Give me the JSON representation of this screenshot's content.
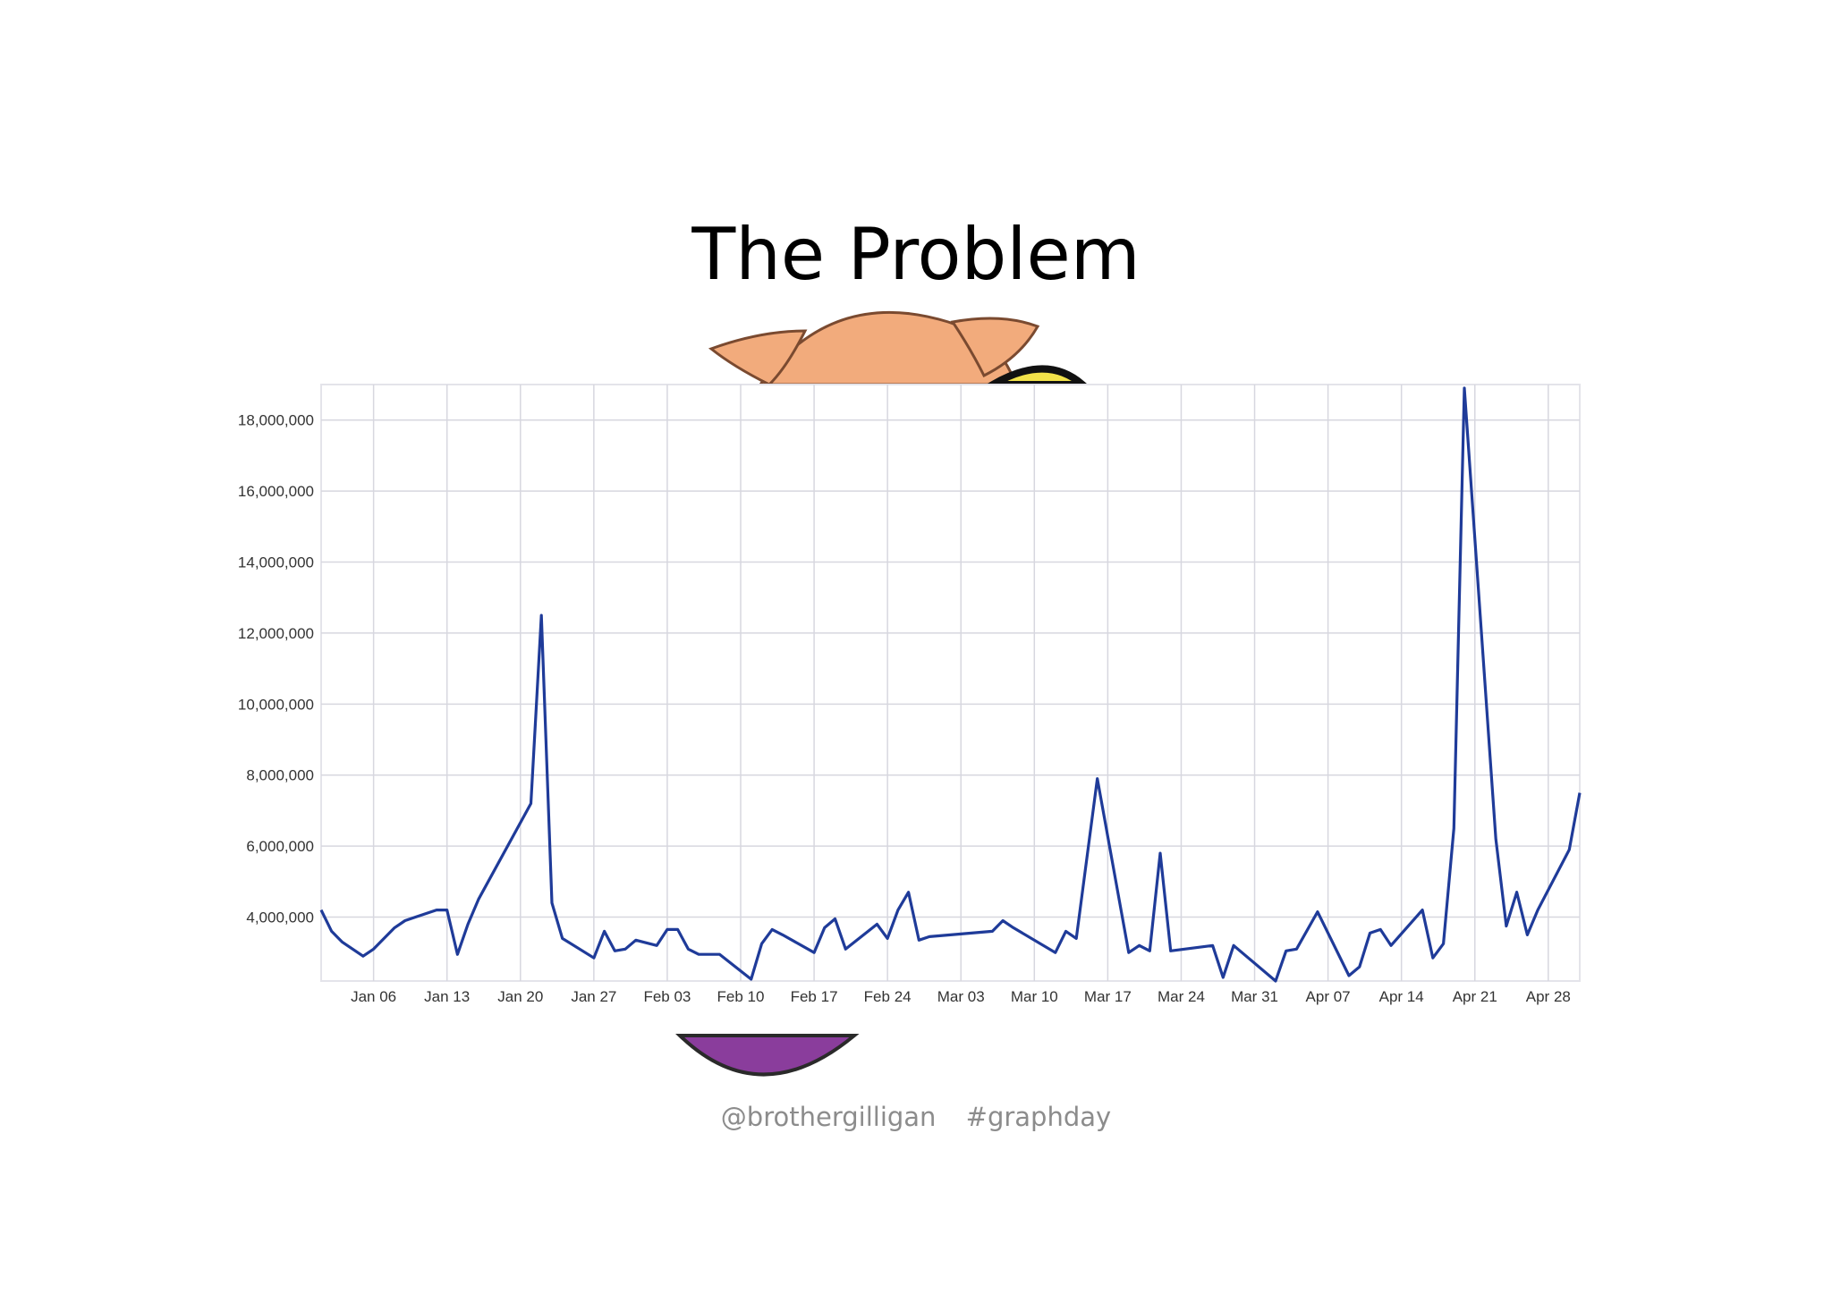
{
  "slide": {
    "title": "The Problem",
    "footer_handle": "@brothergilligan",
    "footer_hashtag": "#graphday"
  },
  "colors": {
    "series": "#1f3b99",
    "grid": "#d7d7df",
    "mascot_skin": "#f2ab7c",
    "mascot_purple": "#8a3d9c"
  },
  "icons": [
    "pig-mascot-icon"
  ],
  "chart_data": {
    "type": "line",
    "title": "",
    "xlabel": "",
    "ylabel": "",
    "ylim": [
      2200000,
      19000000
    ],
    "y_ticks": [
      4000000,
      6000000,
      8000000,
      10000000,
      12000000,
      14000000,
      16000000,
      18000000
    ],
    "y_tick_labels": [
      "4,000,000",
      "6,000,000",
      "8,000,000",
      "10,000,000",
      "12,000,000",
      "14,000,000",
      "16,000,000",
      "18,000,000"
    ],
    "x_range": [
      "Jan 01",
      "May 01"
    ],
    "x_ticks": [
      "Jan 06",
      "Jan 13",
      "Jan 20",
      "Jan 27",
      "Feb 03",
      "Feb 10",
      "Feb 17",
      "Feb 24",
      "Mar 03",
      "Mar 10",
      "Mar 17",
      "Mar 24",
      "Mar 31",
      "Apr 07",
      "Apr 14",
      "Apr 21",
      "Apr 28"
    ],
    "grid": true,
    "legend": "none",
    "series": [
      {
        "x": [
          "Jan 01",
          "Jan 02",
          "Jan 03",
          "Jan 05",
          "Jan 06",
          "Jan 08",
          "Jan 09",
          "Jan 10",
          "Jan 12",
          "Jan 13",
          "Jan 14",
          "Jan 15",
          "Jan 16",
          "Jan 21",
          "Jan 22",
          "Jan 23",
          "Jan 24",
          "Jan 27",
          "Jan 28",
          "Jan 29",
          "Jan 30",
          "Jan 31",
          "Feb 02",
          "Feb 03",
          "Feb 04",
          "Feb 05",
          "Feb 06",
          "Feb 08",
          "Feb 11",
          "Feb 12",
          "Feb 13",
          "Feb 14",
          "Feb 17",
          "Feb 18",
          "Feb 19",
          "Feb 20",
          "Feb 23",
          "Feb 24",
          "Feb 25",
          "Feb 26",
          "Feb 27",
          "Feb 28",
          "Mar 06",
          "Mar 07",
          "Mar 08",
          "Mar 12",
          "Mar 13",
          "Mar 14",
          "Mar 16",
          "Mar 19",
          "Mar 20",
          "Mar 21",
          "Mar 22",
          "Mar 23",
          "Mar 27",
          "Mar 28",
          "Mar 29",
          "Apr 02",
          "Apr 03",
          "Apr 04",
          "Apr 06",
          "Apr 09",
          "Apr 10",
          "Apr 11",
          "Apr 12",
          "Apr 13",
          "Apr 16",
          "Apr 17",
          "Apr 18",
          "Apr 19",
          "Apr 20",
          "Apr 23",
          "Apr 24",
          "Apr 25",
          "Apr 26",
          "Apr 27",
          "Apr 30",
          "May 01"
        ],
        "values": [
          4200000,
          3600000,
          3300000,
          2900000,
          3100000,
          3700000,
          3900000,
          4000000,
          4200000,
          4200000,
          2950000,
          3800000,
          4500000,
          7200000,
          12500000,
          4400000,
          3400000,
          2850000,
          3600000,
          3050000,
          3100000,
          3350000,
          3200000,
          3650000,
          3650000,
          3100000,
          2950000,
          2950000,
          2250000,
          3250000,
          3650000,
          3500000,
          3000000,
          3700000,
          3950000,
          3100000,
          3800000,
          3400000,
          4200000,
          4700000,
          3350000,
          3450000,
          3600000,
          3900000,
          3700000,
          3000000,
          3600000,
          3400000,
          7900000,
          3000000,
          3200000,
          3050000,
          5800000,
          3050000,
          3200000,
          2300000,
          3200000,
          2200000,
          3050000,
          3100000,
          4150000,
          2350000,
          2600000,
          3550000,
          3650000,
          3200000,
          4200000,
          2850000,
          3250000,
          6500000,
          18900000,
          6200000,
          3750000,
          4700000,
          3500000,
          4200000,
          5900000,
          7500000
        ]
      }
    ]
  }
}
